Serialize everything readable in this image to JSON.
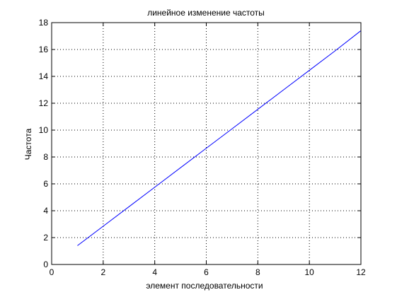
{
  "chart_data": {
    "type": "line",
    "title": "линейное  изменение частоты",
    "xlabel": "элемент последовательности",
    "ylabel": "Частота",
    "xlim": [
      0,
      12
    ],
    "ylim": [
      0,
      18
    ],
    "x_ticks": [
      "0",
      "2",
      "4",
      "6",
      "8",
      "10",
      "12"
    ],
    "y_ticks": [
      "0",
      "2",
      "4",
      "6",
      "8",
      "10",
      "12",
      "14",
      "16",
      "18"
    ],
    "grid": true,
    "series": [
      {
        "color": "#0000ff",
        "x": [
          1,
          2,
          3,
          4,
          5,
          6,
          7,
          8,
          9,
          10,
          11,
          12
        ],
        "y": [
          1.4,
          2.85,
          4.3,
          5.75,
          7.2,
          8.65,
          10.1,
          11.55,
          13.0,
          14.45,
          15.9,
          17.4
        ]
      }
    ]
  }
}
